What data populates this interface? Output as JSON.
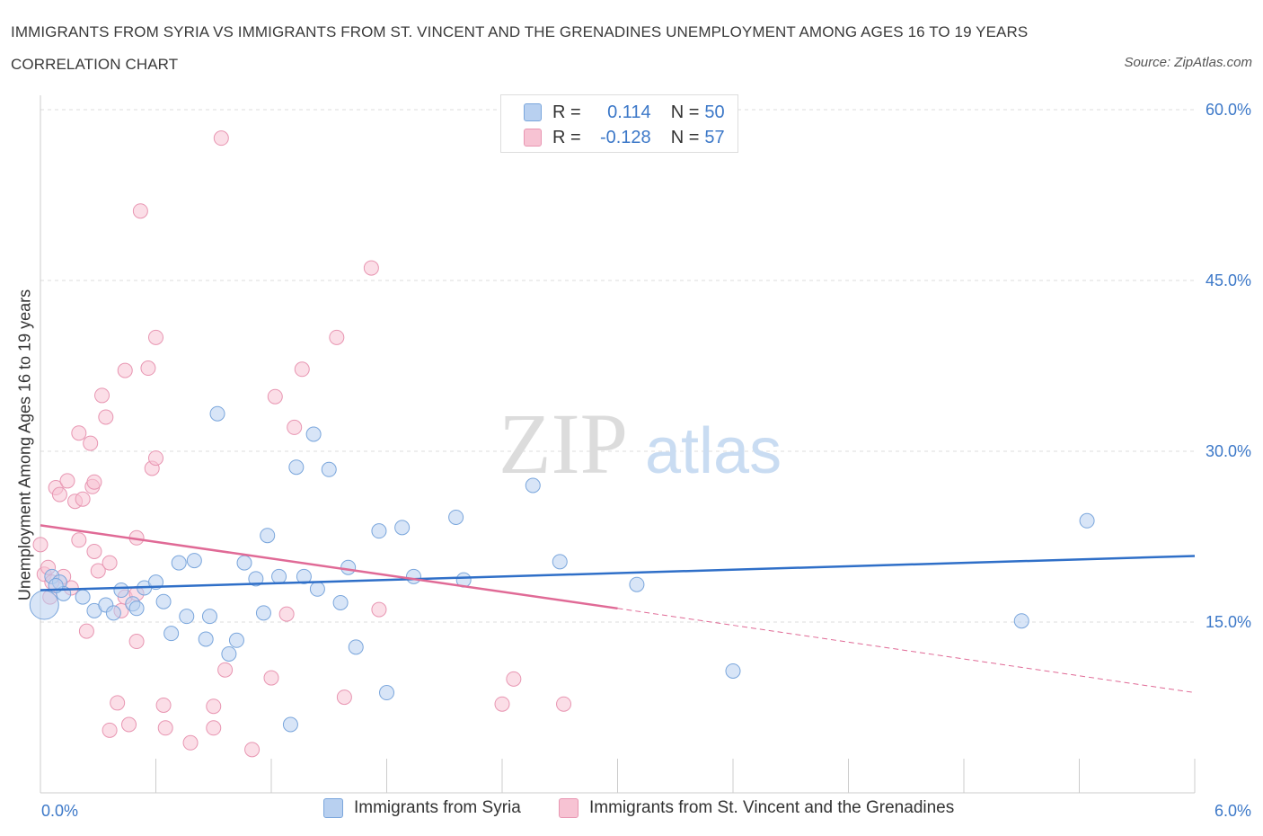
{
  "title": "IMMIGRANTS FROM SYRIA VS IMMIGRANTS FROM ST. VINCENT AND THE GRENADINES UNEMPLOYMENT AMONG AGES 16 TO 19 YEARS CORRELATION CHART",
  "source": "Source: ZipAtlas.com",
  "watermark": {
    "zip": "ZIP",
    "atlas": "atlas"
  },
  "legend": {
    "series1": {
      "r_label": "R =",
      "r_value": "0.114",
      "n_label": "N =",
      "n_value": "50"
    },
    "series2": {
      "r_label": "R =",
      "r_value": "-0.128",
      "n_label": "N =",
      "n_value": "57"
    }
  },
  "colors": {
    "syria_fill": "#b8d0f0",
    "syria_stroke": "#7aa6dc",
    "syria_line": "#2f6fc8",
    "svg_fill": "#f7c3d3",
    "svg_stroke": "#e896b2",
    "svg_line": "#e06a96",
    "axis_text": "#3c78c8",
    "grid": "#dddddd"
  },
  "chart_data": {
    "type": "scatter",
    "xlabel": "",
    "ylabel": "Unemployment Among Ages 16 to 19 years",
    "xlim": [
      0,
      6
    ],
    "ylim": [
      0,
      60
    ],
    "x_tick_labels": [
      "0.0%",
      "6.0%"
    ],
    "y_tick_labels": [
      "15.0%",
      "30.0%",
      "45.0%",
      "60.0%"
    ],
    "y_ticks": [
      15,
      30,
      45,
      60
    ],
    "grid": true,
    "legend_position": "top-center",
    "series": [
      {
        "name": "Immigrants from Syria",
        "r": 0.114,
        "n": 50,
        "trend": {
          "x0": 0,
          "y0": 17.8,
          "x1": 6,
          "y1": 20.8
        },
        "points": [
          [
            0.02,
            16.5
          ],
          [
            0.06,
            19.0
          ],
          [
            0.1,
            18.5
          ],
          [
            0.12,
            17.5
          ],
          [
            0.22,
            17.2
          ],
          [
            0.28,
            16.0
          ],
          [
            0.34,
            16.5
          ],
          [
            0.38,
            15.8
          ],
          [
            0.42,
            17.8
          ],
          [
            0.48,
            16.6
          ],
          [
            0.5,
            16.2
          ],
          [
            0.54,
            18.0
          ],
          [
            0.6,
            18.5
          ],
          [
            0.64,
            16.8
          ],
          [
            0.68,
            14.0
          ],
          [
            0.72,
            20.2
          ],
          [
            0.76,
            15.5
          ],
          [
            0.8,
            20.4
          ],
          [
            0.86,
            13.5
          ],
          [
            0.88,
            15.5
          ],
          [
            0.92,
            33.3
          ],
          [
            0.98,
            12.2
          ],
          [
            1.02,
            13.4
          ],
          [
            1.06,
            20.2
          ],
          [
            1.12,
            18.8
          ],
          [
            1.16,
            15.8
          ],
          [
            1.18,
            22.6
          ],
          [
            1.24,
            19.0
          ],
          [
            1.3,
            6.0
          ],
          [
            1.33,
            28.6
          ],
          [
            1.37,
            19.0
          ],
          [
            1.42,
            31.5
          ],
          [
            1.44,
            17.9
          ],
          [
            1.5,
            28.4
          ],
          [
            1.56,
            16.7
          ],
          [
            1.6,
            19.8
          ],
          [
            1.64,
            12.8
          ],
          [
            1.76,
            23.0
          ],
          [
            1.8,
            8.8
          ],
          [
            1.88,
            23.3
          ],
          [
            1.94,
            19.0
          ],
          [
            2.16,
            24.2
          ],
          [
            2.2,
            18.7
          ],
          [
            2.56,
            27.0
          ],
          [
            2.7,
            20.3
          ],
          [
            3.1,
            18.3
          ],
          [
            3.6,
            10.7
          ],
          [
            5.1,
            15.1
          ],
          [
            5.44,
            23.9
          ],
          [
            0.08,
            18.2
          ]
        ]
      },
      {
        "name": "Immigrants from St. Vincent and the Grenadines",
        "r": -0.128,
        "n": 57,
        "trend_solid": {
          "x0": 0,
          "y0": 23.5,
          "x1": 3.0,
          "y1": 16.2
        },
        "trend_dashed": {
          "x0": 3.0,
          "y0": 16.2,
          "x1": 6,
          "y1": 8.8
        },
        "points": [
          [
            0.0,
            21.8
          ],
          [
            0.02,
            19.2
          ],
          [
            0.04,
            19.8
          ],
          [
            0.05,
            17.2
          ],
          [
            0.06,
            18.5
          ],
          [
            0.08,
            26.8
          ],
          [
            0.1,
            26.2
          ],
          [
            0.12,
            19.0
          ],
          [
            0.14,
            27.4
          ],
          [
            0.16,
            18.0
          ],
          [
            0.18,
            25.6
          ],
          [
            0.2,
            22.2
          ],
          [
            0.2,
            31.6
          ],
          [
            0.22,
            25.8
          ],
          [
            0.24,
            14.2
          ],
          [
            0.26,
            30.7
          ],
          [
            0.27,
            26.9
          ],
          [
            0.28,
            27.3
          ],
          [
            0.28,
            21.2
          ],
          [
            0.3,
            19.5
          ],
          [
            0.32,
            34.9
          ],
          [
            0.34,
            33.0
          ],
          [
            0.36,
            20.2
          ],
          [
            0.36,
            5.5
          ],
          [
            0.4,
            7.9
          ],
          [
            0.42,
            16.0
          ],
          [
            0.44,
            17.2
          ],
          [
            0.44,
            37.1
          ],
          [
            0.46,
            6.0
          ],
          [
            0.5,
            22.4
          ],
          [
            0.5,
            13.3
          ],
          [
            0.52,
            51.1
          ],
          [
            0.56,
            37.3
          ],
          [
            0.58,
            28.5
          ],
          [
            0.6,
            40.0
          ],
          [
            0.6,
            29.4
          ],
          [
            0.64,
            7.7
          ],
          [
            0.65,
            5.7
          ],
          [
            0.78,
            4.4
          ],
          [
            0.9,
            5.7
          ],
          [
            0.9,
            7.6
          ],
          [
            0.94,
            57.5
          ],
          [
            0.96,
            10.8
          ],
          [
            1.1,
            3.8
          ],
          [
            1.2,
            10.1
          ],
          [
            1.22,
            34.8
          ],
          [
            1.28,
            15.7
          ],
          [
            1.32,
            32.1
          ],
          [
            1.36,
            37.2
          ],
          [
            1.54,
            40.0
          ],
          [
            1.58,
            8.4
          ],
          [
            1.72,
            46.1
          ],
          [
            1.76,
            16.1
          ],
          [
            2.4,
            7.8
          ],
          [
            2.46,
            10.0
          ],
          [
            2.72,
            7.8
          ],
          [
            0.5,
            17.5
          ]
        ]
      }
    ]
  },
  "bottom_legend": {
    "item1": "Immigrants from Syria",
    "item2": "Immigrants from St. Vincent and the Grenadines"
  }
}
